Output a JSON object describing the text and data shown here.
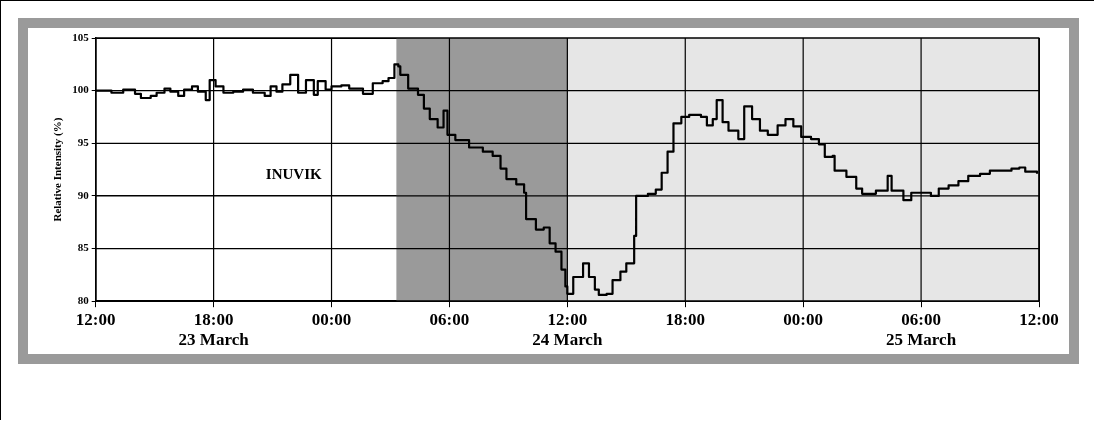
{
  "chart_data": {
    "type": "step",
    "ylabel": "Relative Intensity (%)",
    "annotations": [
      "INUVIK"
    ],
    "xlim": [
      "--03-23T12:00",
      "--03-25T12:00"
    ],
    "xticks": [
      {
        "value": "--03-23T12:00",
        "label": "12:00"
      },
      {
        "value": "--03-23T18:00",
        "label": "18:00\n23 March"
      },
      {
        "value": "--03-24T00:00",
        "label": "00:00"
      },
      {
        "value": "--03-24T06:00",
        "label": "06:00"
      },
      {
        "value": "--03-24T12:00",
        "label": "12:00\n24 March"
      },
      {
        "value": "--03-24T18:00",
        "label": "18:00"
      },
      {
        "value": "--03-25T00:00",
        "label": "00:00"
      },
      {
        "value": "--03-25T06:00",
        "label": "06:00\n25 March"
      },
      {
        "value": "--03-25T12:00",
        "label": "12:00"
      }
    ],
    "ylim": [
      80,
      105
    ],
    "yticks": [
      80,
      85,
      90,
      95,
      100,
      105
    ],
    "grid": true,
    "legend": false,
    "marker": "none",
    "line_style": "solid",
    "bands": [
      {
        "axis": "x",
        "from": "--03-24T03:18",
        "to": "--03-24T12:00",
        "color": "#9a9a9a"
      },
      {
        "axis": "x",
        "from": "--03-24T12:00",
        "to": "--03-25T12:00",
        "color": "#e6e6e6"
      }
    ],
    "series": [
      {
        "color": "#000000",
        "x": [
          "--03-23T12:00",
          "--03-23T12:48",
          "--03-23T13:24",
          "--03-23T14:00",
          "--03-23T14:18",
          "--03-23T14:48",
          "--03-23T15:06",
          "--03-23T15:30",
          "--03-23T15:48",
          "--03-23T16:12",
          "--03-23T16:30",
          "--03-23T16:54",
          "--03-23T17:12",
          "--03-23T17:36",
          "--03-23T17:48",
          "--03-23T18:06",
          "--03-23T18:30",
          "--03-23T19:00",
          "--03-23T19:30",
          "--03-23T20:00",
          "--03-23T20:36",
          "--03-23T20:54",
          "--03-23T21:12",
          "--03-23T21:30",
          "--03-23T21:54",
          "--03-23T22:18",
          "--03-23T22:42",
          "--03-23T23:06",
          "--03-23T23:18",
          "--03-23T23:42",
          "--03-24T00:00",
          "--03-24T00:30",
          "--03-24T00:54",
          "--03-24T01:36",
          "--03-24T02:06",
          "--03-24T02:36",
          "--03-24T02:54",
          "--03-24T03:12",
          "--03-24T03:24",
          "--03-24T03:30",
          "--03-24T03:54",
          "--03-24T04:24",
          "--03-24T04:42",
          "--03-24T05:00",
          "--03-24T05:24",
          "--03-24T05:42",
          "--03-24T05:54",
          "--03-24T06:18",
          "--03-24T07:00",
          "--03-24T07:42",
          "--03-24T08:12",
          "--03-24T08:36",
          "--03-24T08:54",
          "--03-24T09:24",
          "--03-24T09:48",
          "--03-24T09:54",
          "--03-24T10:24",
          "--03-24T10:48",
          "--03-24T11:06",
          "--03-24T11:24",
          "--03-24T11:42",
          "--03-24T11:54",
          "--03-24T12:00",
          "--03-24T12:18",
          "--03-24T12:48",
          "--03-24T13:06",
          "--03-24T13:24",
          "--03-24T13:36",
          "--03-24T14:00",
          "--03-24T14:18",
          "--03-24T14:42",
          "--03-24T15:00",
          "--03-24T15:24",
          "--03-24T15:30",
          "--03-24T16:06",
          "--03-24T16:30",
          "--03-24T16:48",
          "--03-24T17:06",
          "--03-24T17:24",
          "--03-24T17:48",
          "--03-24T18:12",
          "--03-24T18:48",
          "--03-24T19:06",
          "--03-24T19:24",
          "--03-24T19:36",
          "--03-24T19:54",
          "--03-24T20:12",
          "--03-24T20:42",
          "--03-24T21:00",
          "--03-24T21:24",
          "--03-24T21:48",
          "--03-24T22:12",
          "--03-24T22:42",
          "--03-24T23:06",
          "--03-24T23:30",
          "--03-24T23:54",
          "--03-25T00:24",
          "--03-25T00:48",
          "--03-25T01:06",
          "--03-25T01:30",
          "--03-25T01:36",
          "--03-25T02:12",
          "--03-25T02:42",
          "--03-25T03:00",
          "--03-25T03:42",
          "--03-25T04:18",
          "--03-25T04:30",
          "--03-25T05:06",
          "--03-25T05:30",
          "--03-25T06:00",
          "--03-25T06:30",
          "--03-25T06:54",
          "--03-25T07:24",
          "--03-25T07:54",
          "--03-25T08:24",
          "--03-25T09:00",
          "--03-25T09:30",
          "--03-25T10:00",
          "--03-25T10:36",
          "--03-25T11:00",
          "--03-25T11:18",
          "--03-25T11:54"
        ],
        "values": [
          100,
          99.8,
          100.1,
          99.7,
          99.3,
          99.5,
          99.8,
          100.2,
          99.9,
          99.5,
          100.1,
          100.4,
          99.9,
          99.1,
          101,
          100.4,
          99.8,
          99.9,
          100.1,
          99.8,
          99.5,
          100.4,
          99.9,
          100.6,
          101.5,
          99.8,
          101,
          99.6,
          100.9,
          100.1,
          100.4,
          100.5,
          100.2,
          99.7,
          100.7,
          100.9,
          101.2,
          102.5,
          102.3,
          101.5,
          100.2,
          99.6,
          98.3,
          97.3,
          96.5,
          98.1,
          95.8,
          95.3,
          94.6,
          94.2,
          93.8,
          92.6,
          91.6,
          91.1,
          90.3,
          87.8,
          86.8,
          87,
          85.5,
          84.7,
          83,
          81.4,
          80.7,
          82.3,
          83.6,
          82.3,
          81.1,
          80.6,
          80.7,
          82,
          82.8,
          83.6,
          86.2,
          90,
          90.2,
          90.6,
          92.2,
          94.2,
          96.9,
          97.5,
          97.7,
          97.5,
          96.7,
          97.3,
          99.1,
          97,
          96.2,
          95.4,
          98.5,
          97.3,
          96.2,
          95.8,
          96.7,
          97.3,
          96.6,
          95.6,
          95.4,
          94.9,
          93.7,
          93.8,
          92.4,
          91.8,
          90.7,
          90.2,
          90.5,
          91.9,
          90.5,
          89.6,
          90.3,
          90.3,
          90,
          90.7,
          91,
          91.4,
          91.9,
          92.1,
          92.4,
          92.4,
          92.6,
          92.7,
          92.3,
          92.1
        ]
      }
    ]
  }
}
